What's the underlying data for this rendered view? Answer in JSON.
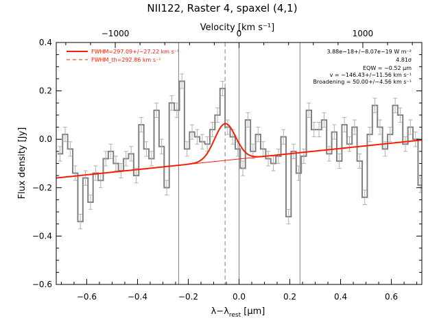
{
  "chart_data": {
    "type": "line",
    "title": "NII122, Raster 4, spaxel (4,1)",
    "xlabel": "λ−λ_rest [μm]",
    "xlabel_main": "λ−λ",
    "xlabel_sub": "rest",
    "xlabel_unit": " [μm]",
    "ylabel": "Flux density [Jy]",
    "top_axis_label": "Velocity [km s⁻¹]",
    "xlim": [
      -0.72,
      0.72
    ],
    "ylim": [
      -0.6,
      0.4
    ],
    "xticks": [
      -0.6,
      -0.4,
      -0.2,
      0.0,
      0.2,
      0.4,
      0.6
    ],
    "xtick_labels": [
      "−0.6",
      "−0.4",
      "−0.2",
      "0.0",
      "0.2",
      "0.4",
      "0.6"
    ],
    "yticks": [
      -0.6,
      -0.4,
      -0.2,
      0.0,
      0.2,
      0.4
    ],
    "ytick_labels": [
      "−0.6",
      "−0.4",
      "−0.2",
      "0.0",
      "0.2",
      "0.4"
    ],
    "top_ticks_um": [
      -0.4875,
      0.0,
      0.4875
    ],
    "top_tick_labels": [
      "−1000",
      "0",
      "1000"
    ],
    "vertical_lines": {
      "solid": [
        -0.238,
        0.0,
        0.24
      ],
      "dashed": [
        -0.055
      ]
    },
    "continuum": {
      "x0": -0.72,
      "y0": -0.16,
      "x1": 0.72,
      "y1": -0.003
    },
    "gaussian": {
      "center": -0.055,
      "amplitude": 0.152,
      "sigma": 0.042
    },
    "colors": {
      "data": "#808080",
      "fit": "#ff1a00",
      "lines": "#808080"
    },
    "series": [
      {
        "name": "data",
        "style": "histogram",
        "x": [
          -0.705,
          -0.685,
          -0.665,
          -0.645,
          -0.625,
          -0.605,
          -0.585,
          -0.565,
          -0.545,
          -0.525,
          -0.505,
          -0.485,
          -0.465,
          -0.445,
          -0.425,
          -0.405,
          -0.385,
          -0.365,
          -0.345,
          -0.325,
          -0.305,
          -0.285,
          -0.265,
          -0.245,
          -0.225,
          -0.205,
          -0.185,
          -0.165,
          -0.145,
          -0.125,
          -0.105,
          -0.085,
          -0.065,
          -0.045,
          -0.025,
          -0.005,
          0.015,
          0.035,
          0.055,
          0.075,
          0.095,
          0.115,
          0.135,
          0.155,
          0.175,
          0.195,
          0.215,
          0.235,
          0.255,
          0.275,
          0.295,
          0.315,
          0.335,
          0.355,
          0.375,
          0.395,
          0.415,
          0.435,
          0.455,
          0.475,
          0.495,
          0.515,
          0.535,
          0.555,
          0.575,
          0.595,
          0.615,
          0.635,
          0.655,
          0.675,
          0.695,
          0.715
        ],
        "y": [
          -0.06,
          0.02,
          -0.04,
          -0.14,
          -0.34,
          -0.16,
          -0.26,
          -0.14,
          -0.17,
          -0.08,
          -0.05,
          -0.1,
          -0.13,
          -0.08,
          -0.06,
          -0.15,
          0.06,
          -0.04,
          -0.08,
          0.12,
          -0.03,
          -0.2,
          0.15,
          0.12,
          0.24,
          -0.04,
          0.03,
          0.01,
          -0.01,
          -0.02,
          0.04,
          0.1,
          0.21,
          0.05,
          0.01,
          -0.04,
          -0.12,
          0.08,
          -0.05,
          0.02,
          -0.04,
          -0.08,
          -0.1,
          -0.07,
          0.01,
          -0.32,
          -0.05,
          -0.14,
          -0.07,
          0.12,
          0.04,
          0.04,
          0.08,
          -0.06,
          0.03,
          -0.09,
          0.06,
          -0.02,
          0.05,
          -0.09,
          -0.24,
          0.02,
          0.14,
          0.05,
          -0.04,
          0.02,
          0.14,
          0.1,
          -0.02,
          0.05,
          0.0,
          -0.19
        ],
        "err": 0.03
      },
      {
        "name": "FWHM=297.09+/−27.22 km s⁻¹",
        "style": "fit"
      }
    ],
    "legend": [
      {
        "label": "FWHM=297.09+/−27.22 km s⁻¹",
        "style": "solid"
      },
      {
        "label": "FWHM_th=292.86 km s⁻¹",
        "style": "dashed"
      }
    ],
    "annotations": [
      "3.88e−18+/−8.07e−19 W m⁻²",
      "4.81σ",
      "EQW = −0.52 μm",
      "v = −146.43+/−11.56 km s⁻¹",
      "Broadening = 50.00+/−4.56 km s⁻¹"
    ],
    "legend_placement": "top-left",
    "annotation_placement": "top-right",
    "grid": false
  }
}
